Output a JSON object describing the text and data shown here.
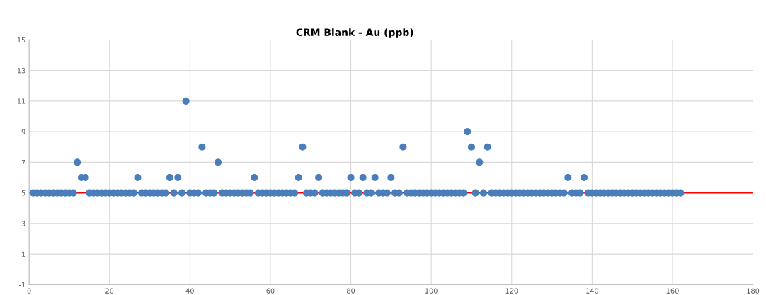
{
  "chart_data": {
    "type": "scatter",
    "title": "CRM Blank - Au (ppb)",
    "x": [
      1,
      2,
      3,
      4,
      5,
      6,
      7,
      8,
      9,
      10,
      11,
      12,
      13,
      14,
      15,
      16,
      17,
      18,
      19,
      20,
      21,
      22,
      23,
      24,
      25,
      26,
      27,
      28,
      29,
      30,
      31,
      32,
      33,
      34,
      35,
      36,
      37,
      38,
      39,
      40,
      41,
      42,
      43,
      44,
      45,
      46,
      47,
      48,
      49,
      50,
      51,
      52,
      53,
      54,
      55,
      56,
      57,
      58,
      59,
      60,
      61,
      62,
      63,
      64,
      65,
      66,
      67,
      68,
      69,
      70,
      71,
      72,
      73,
      74,
      75,
      76,
      77,
      78,
      79,
      80,
      81,
      82,
      83,
      84,
      85,
      86,
      87,
      88,
      89,
      90,
      91,
      92,
      93,
      94,
      95,
      96,
      97,
      98,
      99,
      100,
      101,
      102,
      103,
      104,
      105,
      106,
      107,
      108,
      109,
      110,
      111,
      112,
      113,
      114,
      115,
      116,
      117,
      118,
      119,
      120,
      121,
      122,
      123,
      124,
      125,
      126,
      127,
      128,
      129,
      130,
      131,
      132,
      133,
      134,
      135,
      136,
      137,
      138,
      139,
      140,
      141,
      142,
      143,
      144,
      145,
      146,
      147,
      148,
      149,
      150,
      151,
      152,
      153,
      154,
      155,
      156,
      157,
      158,
      159,
      160,
      161,
      162
    ],
    "series": [
      {
        "color": "#4a7ebb",
        "values": [
          5,
          5,
          5,
          5,
          5,
          5,
          5,
          5,
          5,
          5,
          5,
          7,
          6,
          6,
          5,
          5,
          5,
          5,
          5,
          5,
          5,
          5,
          5,
          5,
          5,
          5,
          6,
          5,
          5,
          5,
          5,
          5,
          5,
          5,
          6,
          5,
          6,
          5,
          11,
          5,
          5,
          5,
          8,
          5,
          5,
          5,
          7,
          5,
          5,
          5,
          5,
          5,
          5,
          5,
          5,
          6,
          5,
          5,
          5,
          5,
          5,
          5,
          5,
          5,
          5,
          5,
          6,
          8,
          5,
          5,
          5,
          6,
          5,
          5,
          5,
          5,
          5,
          5,
          5,
          6,
          5,
          5,
          6,
          5,
          5,
          6,
          5,
          5,
          5,
          6,
          5,
          5,
          8,
          5,
          5,
          5,
          5,
          5,
          5,
          5,
          5,
          5,
          5,
          5,
          5,
          5,
          5,
          5,
          9,
          8,
          5,
          7,
          5,
          8,
          5,
          5,
          5,
          5,
          5,
          5,
          5,
          5,
          5,
          5,
          5,
          5,
          5,
          5,
          5,
          5,
          5,
          5,
          5,
          6,
          5,
          5,
          5,
          6,
          5,
          5,
          5,
          5,
          5,
          5,
          5,
          5,
          5,
          5,
          5,
          5,
          5,
          5,
          5,
          5,
          5,
          5,
          5,
          5,
          5,
          5,
          5,
          5
        ]
      }
    ],
    "xlim": [
      0,
      180
    ],
    "xticks": [
      0,
      20,
      40,
      60,
      80,
      100,
      120,
      140,
      160,
      180
    ],
    "ylim": [
      -1,
      15
    ],
    "yticks": [
      -1,
      1,
      3,
      5,
      7,
      9,
      11,
      13,
      15
    ],
    "ref_lines": [
      {
        "axis": "y",
        "value": 5,
        "color": "#ff0000"
      }
    ],
    "grid": true,
    "marker": "circle"
  }
}
